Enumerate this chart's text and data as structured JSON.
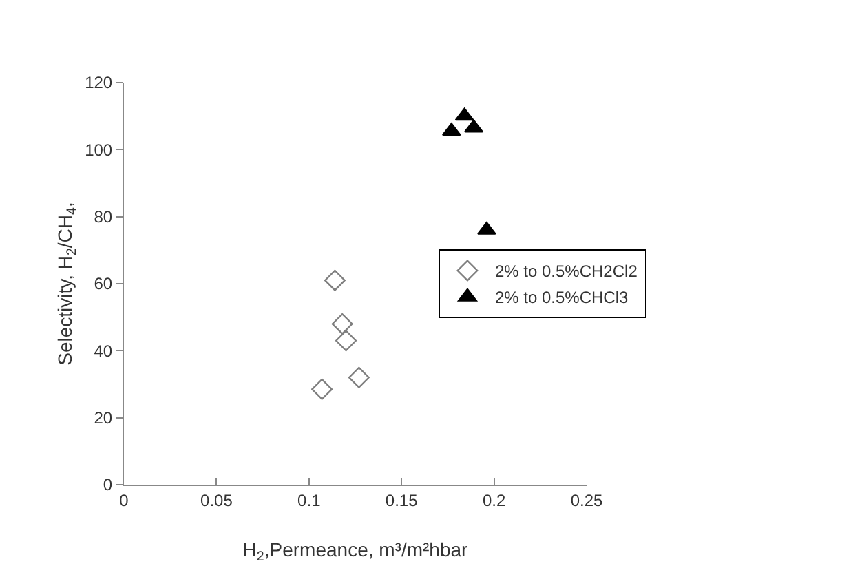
{
  "chart_data": {
    "type": "scatter",
    "xlabel": "H$_{2}$,Permeance, m³/m²hbar",
    "ylabel": "Selectivity, H$_{2}$/CH$_{4}$,",
    "series": [
      {
        "name": "2% to 0.5%CH2Cl2",
        "color": "#7f7f7f",
        "marker": "diamond",
        "x": [
          0.114,
          0.118,
          0.12,
          0.127,
          0.107
        ],
        "values": [
          61,
          48,
          43,
          32,
          28.5
        ]
      },
      {
        "name": "2% to 0.5%CHCl3",
        "color": "#000000",
        "marker": "triangle",
        "x": [
          0.177,
          0.184,
          0.189,
          0.196
        ],
        "values": [
          105.5,
          110,
          106.5,
          76
        ]
      }
    ],
    "xlim": [
      0,
      0.25
    ],
    "xticks": [
      0,
      0.05,
      0.1,
      0.15,
      0.2,
      0.25
    ],
    "ylim": [
      0,
      120
    ],
    "yticks": [
      0,
      20,
      40,
      60,
      80,
      100,
      120
    ],
    "grid": false,
    "legend": "right"
  }
}
